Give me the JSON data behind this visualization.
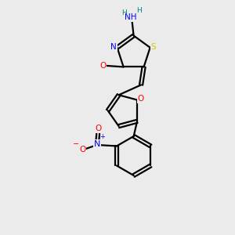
{
  "background_color": "#ebebeb",
  "bond_color": "#000000",
  "atom_colors": {
    "N": "#0000ff",
    "O": "#ff0000",
    "S": "#cccc00",
    "H": "#008080",
    "C": "#000000"
  }
}
